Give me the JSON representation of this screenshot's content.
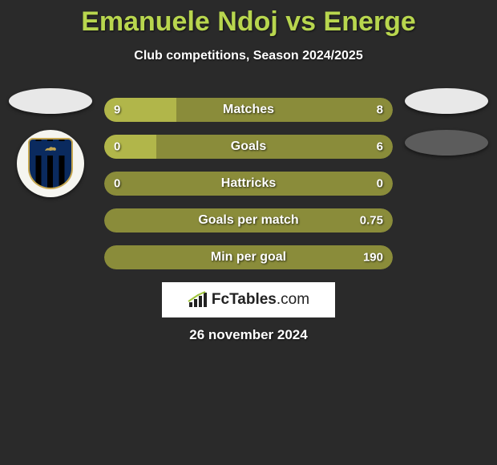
{
  "title": "Emanuele Ndoj vs Energe",
  "subtitle": "Club competitions, Season 2024/2025",
  "left": {
    "ellipse_color": "#e8e8e8",
    "club_name": "U.S. LATINA CALCIO",
    "shield_stripe_a": "#0a2a5e",
    "shield_stripe_b": "#000000",
    "shield_border": "#c4a650"
  },
  "right": {
    "ellipse1_color": "#e8e8e8",
    "ellipse2_color": "#5c5c5c"
  },
  "bars": {
    "base_color": "#8a8c3a",
    "left_fill_color": "#b1b64a",
    "right_fill_color": "#6f7230",
    "rows": [
      {
        "label": "Matches",
        "left_val": "9",
        "right_val": "8",
        "left_pct": 25,
        "right_pct": 0
      },
      {
        "label": "Goals",
        "left_val": "0",
        "right_val": "6",
        "left_pct": 18,
        "right_pct": 0
      },
      {
        "label": "Hattricks",
        "left_val": "0",
        "right_val": "0",
        "left_pct": 0,
        "right_pct": 0
      },
      {
        "label": "Goals per match",
        "left_val": "",
        "right_val": "0.75",
        "left_pct": 0,
        "right_pct": 0
      },
      {
        "label": "Min per goal",
        "left_val": "",
        "right_val": "190",
        "left_pct": 0,
        "right_pct": 0
      }
    ]
  },
  "brand": "FcTables",
  "brand_domain": ".com",
  "date": "26 november 2024",
  "colors": {
    "background": "#2a2a2a",
    "title": "#b8d64e",
    "text": "#ffffff"
  }
}
